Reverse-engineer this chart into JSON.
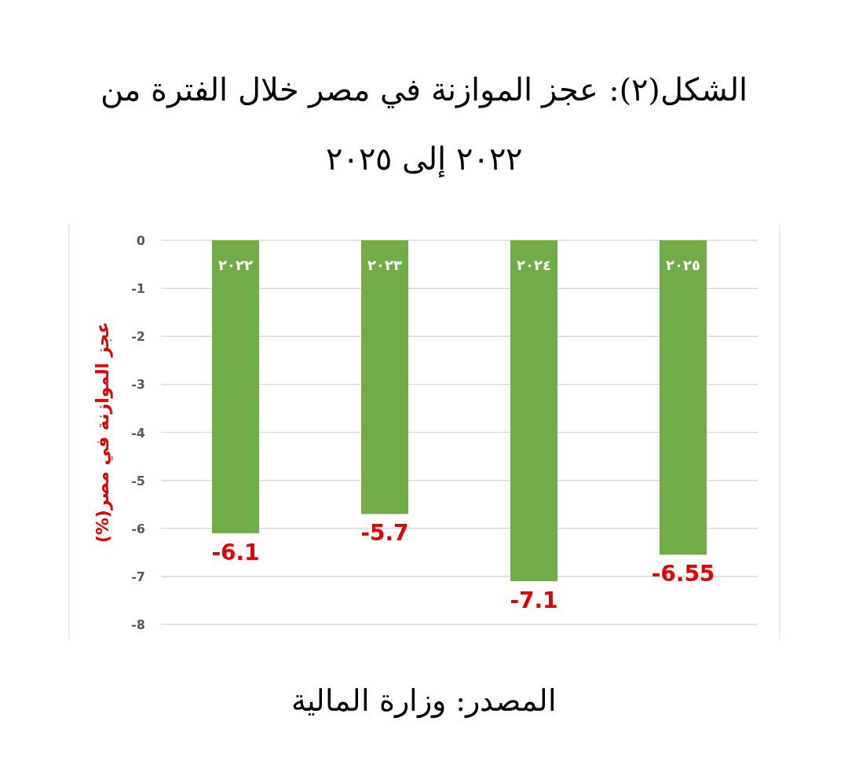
{
  "chart_data": {
    "type": "bar",
    "title": "الشكل(٢): عجز الموازنة في مصر خلال الفترة من ٢٠٢٢ إلى ٢٠٢٥",
    "ylabel": "عجز الموازنة في مصر(%)",
    "categories": [
      "٢٠٢٢",
      "٢٠٢٣",
      "٢٠٢٤",
      "٢٠٢٥"
    ],
    "values": [
      -6.1,
      -5.7,
      -7.1,
      -6.55
    ],
    "color": "#70ad47",
    "ylim": [
      -8,
      0
    ],
    "yticks": [
      0,
      -1,
      -2,
      -3,
      -4,
      -5,
      -6,
      -7,
      -8
    ],
    "grid": "y",
    "data_labels": true,
    "annotations": [
      "المصدر: وزارة المالية"
    ]
  }
}
